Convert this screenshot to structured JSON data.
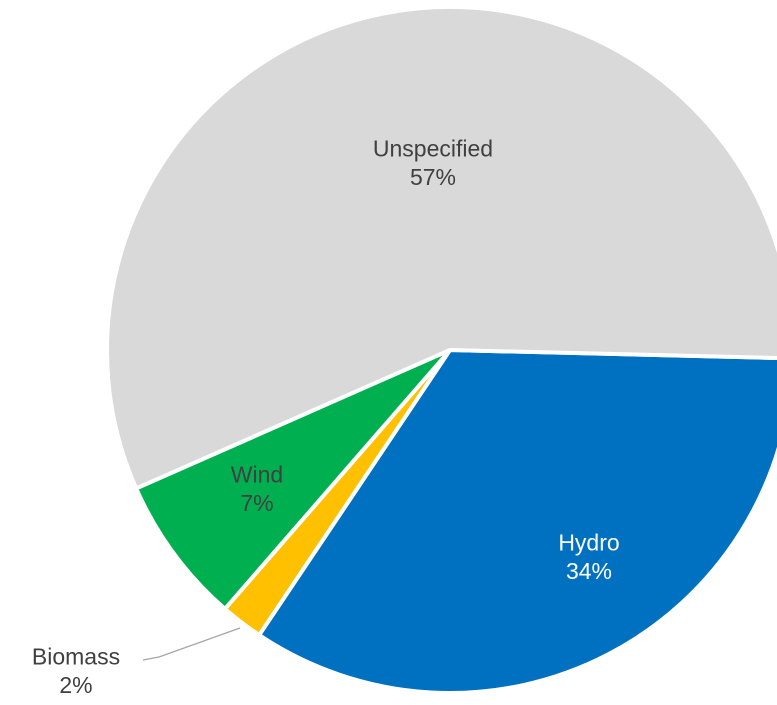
{
  "chart_data": {
    "type": "pie",
    "title": "",
    "slices": [
      {
        "label": "Hydro",
        "percent_label": "34%",
        "value": 34,
        "color": "#0070C0",
        "label_color": "#ffffff"
      },
      {
        "label": "Biomass",
        "percent_label": "2%",
        "value": 2,
        "color": "#FFC000",
        "label_color": "#404040"
      },
      {
        "label": "Wind",
        "percent_label": "7%",
        "value": 7,
        "color": "#00B050",
        "label_color": "#404040"
      },
      {
        "label": "Unspecified",
        "percent_label": "57%",
        "value": 57,
        "color": "#D9D9D9",
        "label_color": "#404040"
      }
    ],
    "legend": "none",
    "data_labels": "category and percentage"
  }
}
